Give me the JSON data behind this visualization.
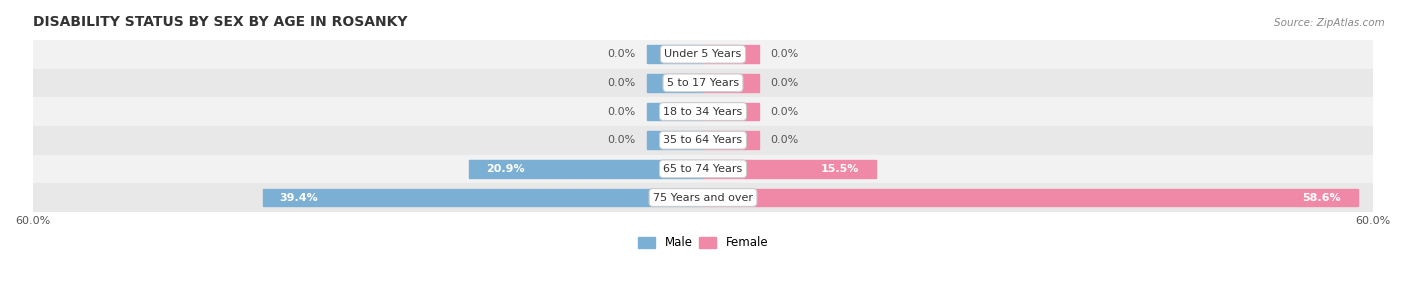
{
  "title": "DISABILITY STATUS BY SEX BY AGE IN ROSANKY",
  "source": "Source: ZipAtlas.com",
  "categories": [
    "Under 5 Years",
    "5 to 17 Years",
    "18 to 34 Years",
    "35 to 64 Years",
    "65 to 74 Years",
    "75 Years and over"
  ],
  "male_values": [
    0.0,
    0.0,
    0.0,
    0.0,
    20.9,
    39.4
  ],
  "female_values": [
    0.0,
    0.0,
    0.0,
    0.0,
    15.5,
    58.6
  ],
  "male_color": "#7bafd4",
  "female_color": "#f088a8",
  "male_label": "Male",
  "female_label": "Female",
  "x_max": 60.0,
  "title_fontsize": 10,
  "label_fontsize": 8,
  "tick_fontsize": 8,
  "source_fontsize": 7.5,
  "bar_height": 0.62,
  "zero_stub": 5.0,
  "row_colors": [
    "#f2f2f2",
    "#e8e8e8"
  ]
}
